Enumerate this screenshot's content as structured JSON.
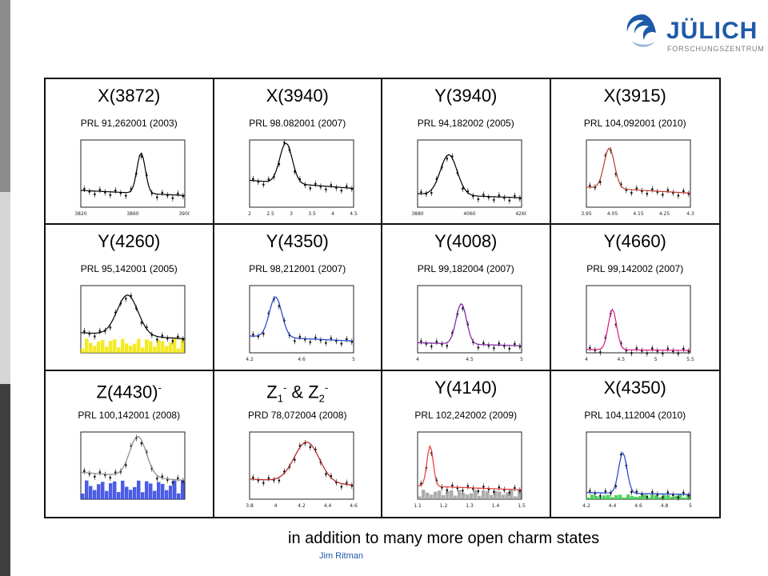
{
  "logo": {
    "name": "JÜLICH",
    "subtitle": "FORSCHUNGSZENTRUM",
    "brand_color": "#1e5aa8"
  },
  "cells": [
    {
      "title": "X(3872)",
      "ref": "PRL 91,262001 (2003)",
      "plot": {
        "peak": 0.58,
        "width": 0.04,
        "bg": 0.25,
        "fill": null,
        "line": "#000",
        "tick_labels": [
          "3820",
          "3860",
          "3900"
        ]
      }
    },
    {
      "title": "X(3940)",
      "ref": "PRL 98.082001 (2007)",
      "plot": {
        "peak": 0.35,
        "width": 0.06,
        "bg": 0.4,
        "fill": null,
        "line": "#000",
        "tick_labels": [
          "2",
          "2.5",
          "3",
          "3.5",
          "4",
          "4.5"
        ]
      }
    },
    {
      "title": "Y(3940)",
      "ref": "PRL 94,182002 (2005)",
      "plot": {
        "peak": 0.3,
        "width": 0.08,
        "bg": 0.2,
        "fill": null,
        "line": "#000",
        "tick_labels": [
          "3880",
          "4060",
          "4260"
        ]
      }
    },
    {
      "title": "X(3915)",
      "ref": "PRL 104,092001 (2010)",
      "plot": {
        "peak": 0.22,
        "width": 0.05,
        "bg": 0.3,
        "fill": null,
        "line": "#c0392b",
        "tick_labels": [
          "3.95",
          "4.05",
          "4.15",
          "4.25",
          "4.3"
        ]
      }
    },
    {
      "title": "Y(4260)",
      "ref": "PRL 95,142001 (2005)",
      "plot": {
        "peak": 0.45,
        "width": 0.1,
        "bg": 0.3,
        "fill": "#f2e600",
        "line": "#000",
        "tick_labels": []
      }
    },
    {
      "title": "Y(4350)",
      "ref": "PRL 98,212001 (2007)",
      "plot": {
        "peak": 0.25,
        "width": 0.06,
        "bg": 0.25,
        "fill": null,
        "line": "#1f3fd0",
        "tick_labels": [
          "4.2",
          "4.6",
          "5"
        ]
      }
    },
    {
      "title": "Y(4008)",
      "ref": "PRL 99,182004 (2007)",
      "plot": {
        "peak": 0.42,
        "width": 0.05,
        "bg": 0.15,
        "fill": null,
        "line": "#7b1fa2",
        "tick_labels": [
          "4",
          "4.5",
          "5"
        ]
      }
    },
    {
      "title": "Y(4660)",
      "ref": "PRL 99,142002 (2007)",
      "plot": {
        "peak": 0.25,
        "width": 0.04,
        "bg": 0.05,
        "fill": null,
        "line": "#d81b8a",
        "tick_labels": [
          "4",
          "4.5",
          "5",
          "5.5"
        ]
      }
    },
    {
      "title": "Z(4430)",
      "title_sup": "-",
      "ref": "PRL 100,142001 (2008)",
      "plot": {
        "peak": 0.55,
        "width": 0.08,
        "bg": 0.4,
        "fill": "#2b3fe0",
        "line": "#888",
        "tick_labels": []
      }
    },
    {
      "title_parts": [
        "Z",
        "1",
        "-",
        " & Z",
        "2",
        "-"
      ],
      "ref": "PRD 78,072004 (2008)",
      "plot": {
        "peak": 0.55,
        "width": 0.12,
        "bg": 0.3,
        "fill": null,
        "line": "#b71c1c",
        "tick_labels": [
          "3.8",
          "4",
          "4.2",
          "4.4",
          "4.6"
        ]
      }
    },
    {
      "title": "Y(4140)",
      "ref": "PRL 102,242002 (2009)",
      "plot": {
        "peak": 0.12,
        "width": 0.03,
        "bg": 0.2,
        "fill": "#9e9e9e",
        "line": "#e53935",
        "tick_labels": [
          "1.1",
          "1.2",
          "1.3",
          "1.4",
          "1.5"
        ]
      }
    },
    {
      "title": "X(4350)",
      "ref": "PRL 104,112004 (2010)",
      "plot": {
        "peak": 0.35,
        "width": 0.04,
        "bg": 0.1,
        "fill": "#2ecc40",
        "line": "#1f3fd0",
        "tick_labels": [
          "4.2",
          "4.4",
          "4.6",
          "4.8",
          "5"
        ]
      }
    }
  ],
  "footer_text": "in addition to many more open charm states",
  "author": "Jim Ritman"
}
